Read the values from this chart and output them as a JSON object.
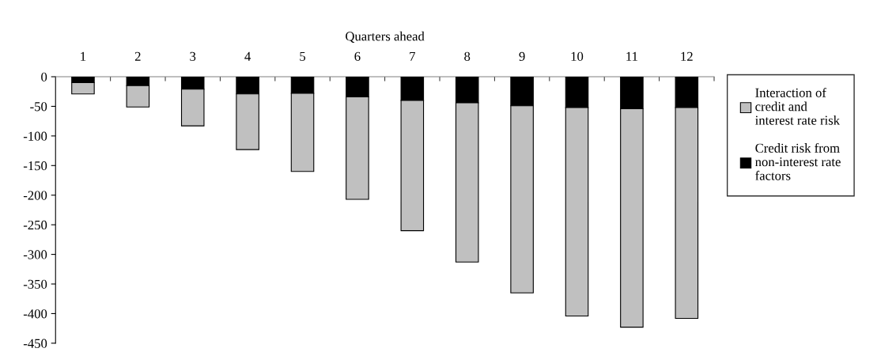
{
  "chart_data": {
    "type": "bar",
    "stacked": true,
    "xlabel": "Quarters ahead",
    "categories": [
      "1",
      "2",
      "3",
      "4",
      "5",
      "6",
      "7",
      "8",
      "9",
      "10",
      "11",
      "12"
    ],
    "series": [
      {
        "name": "Credit risk from non-interest rate factors",
        "color": "#000000",
        "values": [
          -10,
          -15,
          -21,
          -29,
          -28,
          -34,
          -40,
          -44,
          -49,
          -52,
          -54,
          -52
        ]
      },
      {
        "name": "Interaction of credit and interest rate risk",
        "color": "#c0c0c0",
        "values": [
          -19,
          -36,
          -62,
          -94,
          -132,
          -173,
          -220,
          -269,
          -316,
          -352,
          -369,
          -356
        ]
      }
    ],
    "ylim": [
      -450,
      0
    ],
    "yticks": [
      0,
      -50,
      -100,
      -150,
      -200,
      -250,
      -300,
      -350,
      -400,
      -450
    ],
    "grid": false,
    "legend": "right"
  }
}
